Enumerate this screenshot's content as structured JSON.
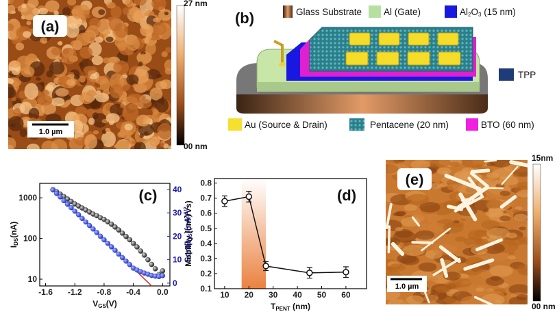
{
  "panel_labels": [
    "(a)",
    "(b)",
    "(c)",
    "(d)",
    "(e)"
  ],
  "afm_a": {
    "colorbar_max": "27 nm",
    "colorbar_min": "00 nm",
    "scale_bar": "1.0 µm"
  },
  "afm_e": {
    "colorbar_max": "15nm",
    "colorbar_min": "00 nm",
    "scale_bar": "1.0 µm"
  },
  "schematic": {
    "legend": [
      {
        "label": [
          {
            "text": "Glass Substrate"
          }
        ]
      },
      {
        "label": [
          {
            "text": "Al (Gate)"
          }
        ]
      },
      {
        "label": [
          {
            "text": "Al"
          },
          {
            "text": "2",
            "shift": "sub"
          },
          {
            "text": "O"
          },
          {
            "text": "3",
            "shift": "sub"
          },
          {
            "text": " (15 nm)"
          }
        ]
      },
      {
        "label": [
          {
            "text": "TPP"
          }
        ]
      },
      {
        "label": [
          {
            "text": "Au (Source & Drain)"
          }
        ]
      },
      {
        "label": [
          {
            "text": "Pentacene (20 nm)"
          }
        ]
      },
      {
        "label": [
          {
            "text": "BTO (60 nm)"
          }
        ]
      }
    ]
  },
  "chart_data": [
    {
      "type": "scatter",
      "x": [
        -1.5,
        -1.45,
        -1.4,
        -1.35,
        -1.3,
        -1.25,
        -1.2,
        -1.15,
        -1.1,
        -1.05,
        -1.0,
        -0.95,
        -0.9,
        -0.85,
        -0.8,
        -0.75,
        -0.7,
        -0.65,
        -0.6,
        -0.55,
        -0.5,
        -0.45,
        -0.4,
        -0.35,
        -0.3,
        -0.25,
        -0.2,
        -0.15,
        -0.1,
        -0.05,
        0.0
      ],
      "x_label": [
        {
          "text": "V"
        },
        {
          "text": "GS",
          "shift": "sub"
        },
        {
          "text": "(V)"
        }
      ],
      "y_label": [
        {
          "text": "I"
        },
        {
          "text": "DS",
          "shift": "sub"
        },
        {
          "text": "(nA)"
        }
      ],
      "y2_label": [
        {
          "text": "Sqrt(I"
        },
        {
          "text": "DS",
          "shift": "sub"
        },
        {
          "text": ")(nA)"
        },
        {
          "text": "1/2",
          "shift": "sup"
        }
      ],
      "xlim": [
        -1.68,
        0.1
      ],
      "xticks": [
        -1.6,
        -1.2,
        -0.8,
        -0.4,
        {
          "value": 0,
          "label": "0.0"
        }
      ],
      "ylim": [
        6.8,
        2270
      ],
      "yscale": "log",
      "yticks": [
        10,
        100,
        1000
      ],
      "y2lim": [
        -1.2,
        42.6
      ],
      "y2ticks": [
        0,
        10,
        20,
        30,
        40
      ],
      "y2_color": "#1c1ca8",
      "series": [
        {
          "color": "#2a2a2a",
          "values": [
            1585,
            1413,
            1230,
            1072,
            933,
            813,
            708,
            631,
            562,
            501,
            447,
            398,
            363,
            324,
            295,
            257,
            224,
            191,
            162,
            135,
            112,
            93,
            76,
            62,
            49,
            39,
            30,
            23,
            18,
            13,
            16
          ]
        },
        {
          "color": "#2f46d8",
          "axis": "y2",
          "values": [
            39.8,
            38.3,
            36.8,
            35.2,
            33.7,
            32.2,
            30.7,
            29.2,
            27.6,
            26.1,
            24.6,
            23.1,
            21.6,
            20.0,
            18.5,
            17.0,
            15.5,
            14.0,
            12.4,
            10.9,
            9.4,
            7.9,
            6.4,
            5.6,
            4.9,
            4.3,
            3.8,
            3.3,
            3.0,
            2.8,
            3.2
          ]
        }
      ],
      "fit": {
        "color": "#e02020",
        "axis": "y2",
        "x": [
          -1.5,
          -0.15
        ],
        "values": [
          39.8,
          -1.2
        ]
      }
    },
    {
      "type": "line",
      "x": [
        10,
        20,
        27,
        45,
        60
      ],
      "values": [
        0.68,
        0.71,
        0.25,
        0.205,
        0.21
      ],
      "errors": [
        0.035,
        0.035,
        0.03,
        0.035,
        0.035
      ],
      "color": "#111111",
      "highlight": [
        17,
        27
      ],
      "highlight_color": "#e8732a",
      "x_label": [
        {
          "text": "T"
        },
        {
          "text": "PENT",
          "shift": "sub"
        },
        {
          "text": " (nm)"
        }
      ],
      "y_label": [
        {
          "text": "Mobility (cm"
        },
        {
          "text": "2",
          "shift": "sup"
        },
        {
          "text": "/Vs)"
        }
      ],
      "xlim": [
        5.8,
        68.5
      ],
      "xticks": [
        10,
        20,
        30,
        40,
        50,
        60
      ],
      "ylim": [
        0.1,
        0.83
      ],
      "yticks": [
        0.1,
        0.2,
        0.3,
        0.4,
        0.5,
        0.6,
        0.7,
        0.8
      ]
    }
  ]
}
